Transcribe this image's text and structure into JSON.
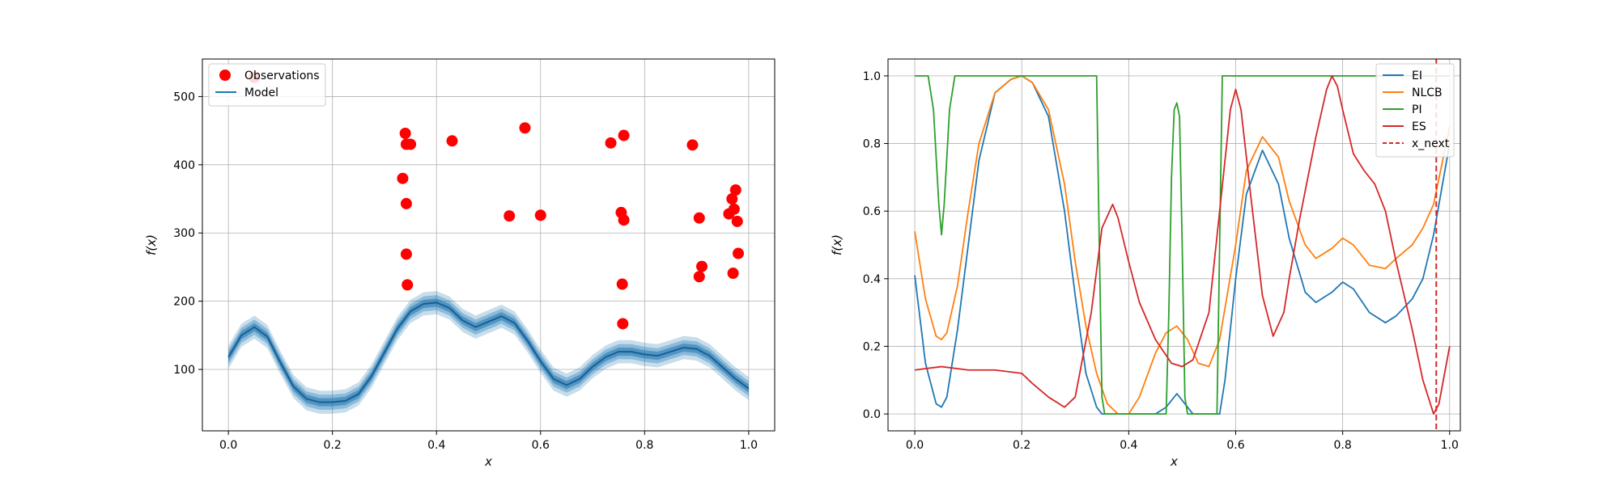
{
  "chart_data": [
    {
      "type": "scatter",
      "xlabel": "x",
      "ylabel": "f(x)",
      "xlim": [
        -0.05,
        1.05
      ],
      "ylim": [
        10,
        555
      ],
      "xticks": [
        0.0,
        0.2,
        0.4,
        0.6,
        0.8,
        1.0
      ],
      "xtick_labels": [
        "0.0",
        "0.2",
        "0.4",
        "0.6",
        "0.8",
        "1.0"
      ],
      "yticks": [
        100,
        200,
        300,
        400,
        500
      ],
      "ytick_labels": [
        "100",
        "200",
        "300",
        "400",
        "500"
      ],
      "grid": true,
      "legend_position": "upper-left",
      "series": [
        {
          "name": "Observations",
          "kind": "scatter",
          "color": "#ff0000",
          "x": [
            0.05,
            0.335,
            0.34,
            0.342,
            0.342,
            0.342,
            0.344,
            0.35,
            0.43,
            0.54,
            0.57,
            0.6,
            0.735,
            0.755,
            0.757,
            0.758,
            0.76,
            0.76,
            0.892,
            0.905,
            0.905,
            0.91,
            0.962,
            0.968,
            0.97,
            0.972,
            0.975,
            0.978,
            0.98
          ],
          "y": [
            528,
            380,
            446,
            430,
            343,
            269,
            224,
            430,
            435,
            325,
            454,
            326,
            432,
            330,
            225,
            167,
            443,
            319,
            429,
            322,
            236,
            251,
            328,
            350,
            241,
            335,
            363,
            317,
            270
          ]
        },
        {
          "name": "Model",
          "kind": "line",
          "color": "#1f77b4",
          "x": [
            0.0,
            0.025,
            0.05,
            0.075,
            0.1,
            0.125,
            0.15,
            0.175,
            0.2,
            0.225,
            0.25,
            0.275,
            0.3,
            0.325,
            0.35,
            0.375,
            0.4,
            0.425,
            0.45,
            0.475,
            0.5,
            0.525,
            0.55,
            0.575,
            0.6,
            0.625,
            0.65,
            0.675,
            0.7,
            0.725,
            0.75,
            0.775,
            0.8,
            0.825,
            0.85,
            0.875,
            0.9,
            0.925,
            0.95,
            0.975,
            1.0
          ],
          "y": [
            118,
            150,
            162,
            148,
            110,
            75,
            57,
            52,
            52,
            54,
            64,
            90,
            125,
            160,
            185,
            196,
            198,
            190,
            172,
            162,
            170,
            178,
            168,
            142,
            112,
            86,
            77,
            86,
            104,
            118,
            126,
            126,
            122,
            120,
            126,
            132,
            130,
            120,
            103,
            86,
            72
          ]
        }
      ],
      "uncertainty_band_half_widths": [
        6,
        11,
        17
      ]
    },
    {
      "type": "line",
      "xlabel": "x",
      "ylabel": "f(x)",
      "xlim": [
        -0.05,
        1.02
      ],
      "ylim": [
        -0.05,
        1.05
      ],
      "xticks": [
        0.0,
        0.2,
        0.4,
        0.6,
        0.8,
        1.0
      ],
      "xtick_labels": [
        "0.0",
        "0.2",
        "0.4",
        "0.6",
        "0.8",
        "1.0"
      ],
      "yticks": [
        0.0,
        0.2,
        0.4,
        0.6,
        0.8,
        1.0
      ],
      "ytick_labels": [
        "0.0",
        "0.2",
        "0.4",
        "0.6",
        "0.8",
        "1.0"
      ],
      "grid": true,
      "legend_position": "upper-right",
      "series": [
        {
          "name": "EI",
          "color": "#1f77b4",
          "x": [
            0.0,
            0.02,
            0.04,
            0.05,
            0.06,
            0.08,
            0.1,
            0.12,
            0.15,
            0.18,
            0.2,
            0.22,
            0.25,
            0.28,
            0.3,
            0.32,
            0.34,
            0.35,
            0.36,
            0.4,
            0.45,
            0.47,
            0.49,
            0.51,
            0.52,
            0.55,
            0.57,
            0.58,
            0.6,
            0.62,
            0.65,
            0.68,
            0.7,
            0.73,
            0.75,
            0.78,
            0.8,
            0.82,
            0.85,
            0.88,
            0.9,
            0.93,
            0.95,
            0.97,
            1.0
          ],
          "y": [
            0.41,
            0.15,
            0.03,
            0.02,
            0.05,
            0.25,
            0.5,
            0.75,
            0.95,
            0.99,
            1.0,
            0.98,
            0.88,
            0.6,
            0.35,
            0.12,
            0.02,
            0.0,
            0.0,
            0.0,
            0.0,
            0.02,
            0.06,
            0.02,
            0.0,
            0.0,
            0.0,
            0.1,
            0.4,
            0.65,
            0.78,
            0.68,
            0.52,
            0.36,
            0.33,
            0.36,
            0.39,
            0.37,
            0.3,
            0.27,
            0.29,
            0.34,
            0.4,
            0.53,
            0.8
          ]
        },
        {
          "name": "NLCB",
          "color": "#ff7f0e",
          "x": [
            0.0,
            0.02,
            0.04,
            0.05,
            0.06,
            0.08,
            0.1,
            0.12,
            0.15,
            0.18,
            0.2,
            0.22,
            0.25,
            0.28,
            0.3,
            0.32,
            0.34,
            0.36,
            0.38,
            0.4,
            0.42,
            0.45,
            0.47,
            0.49,
            0.51,
            0.53,
            0.55,
            0.57,
            0.6,
            0.62,
            0.65,
            0.68,
            0.7,
            0.73,
            0.75,
            0.78,
            0.8,
            0.82,
            0.85,
            0.88,
            0.9,
            0.93,
            0.95,
            0.97,
            1.0
          ],
          "y": [
            0.54,
            0.34,
            0.23,
            0.22,
            0.24,
            0.38,
            0.6,
            0.8,
            0.95,
            0.99,
            1.0,
            0.98,
            0.9,
            0.68,
            0.45,
            0.26,
            0.12,
            0.03,
            0.0,
            0.0,
            0.05,
            0.18,
            0.24,
            0.26,
            0.22,
            0.15,
            0.14,
            0.22,
            0.5,
            0.72,
            0.82,
            0.76,
            0.63,
            0.5,
            0.46,
            0.49,
            0.52,
            0.5,
            0.44,
            0.43,
            0.46,
            0.5,
            0.55,
            0.62,
            0.85
          ]
        },
        {
          "name": "PI",
          "color": "#2ca02c",
          "x": [
            0.0,
            0.025,
            0.035,
            0.045,
            0.05,
            0.055,
            0.065,
            0.075,
            0.08,
            0.34,
            0.345,
            0.35,
            0.355,
            0.47,
            0.475,
            0.48,
            0.485,
            0.49,
            0.495,
            0.5,
            0.505,
            0.51,
            0.565,
            0.57,
            0.575,
            1.0
          ],
          "y": [
            1.0,
            1.0,
            0.9,
            0.62,
            0.53,
            0.62,
            0.9,
            1.0,
            1.0,
            1.0,
            0.5,
            0.05,
            0.0,
            0.0,
            0.3,
            0.7,
            0.9,
            0.92,
            0.88,
            0.5,
            0.05,
            0.0,
            0.0,
            0.5,
            1.0,
            1.0
          ]
        },
        {
          "name": "ES",
          "color": "#d62728",
          "x": [
            0.0,
            0.05,
            0.1,
            0.15,
            0.2,
            0.22,
            0.25,
            0.28,
            0.3,
            0.33,
            0.35,
            0.37,
            0.38,
            0.4,
            0.42,
            0.45,
            0.48,
            0.5,
            0.52,
            0.55,
            0.57,
            0.59,
            0.6,
            0.61,
            0.63,
            0.65,
            0.67,
            0.69,
            0.7,
            0.72,
            0.75,
            0.77,
            0.78,
            0.79,
            0.8,
            0.82,
            0.84,
            0.86,
            0.88,
            0.9,
            0.93,
            0.95,
            0.97,
            0.98,
            1.0
          ],
          "y": [
            0.13,
            0.14,
            0.13,
            0.13,
            0.12,
            0.09,
            0.05,
            0.02,
            0.05,
            0.3,
            0.55,
            0.62,
            0.58,
            0.45,
            0.33,
            0.22,
            0.15,
            0.14,
            0.16,
            0.3,
            0.6,
            0.9,
            0.96,
            0.9,
            0.62,
            0.35,
            0.23,
            0.3,
            0.4,
            0.58,
            0.82,
            0.96,
            1.0,
            0.97,
            0.9,
            0.77,
            0.72,
            0.68,
            0.6,
            0.45,
            0.25,
            0.1,
            0.0,
            0.03,
            0.2
          ]
        },
        {
          "name": "x_next",
          "color": "#d62728",
          "dashed": true,
          "x_value": 0.975
        }
      ]
    }
  ]
}
